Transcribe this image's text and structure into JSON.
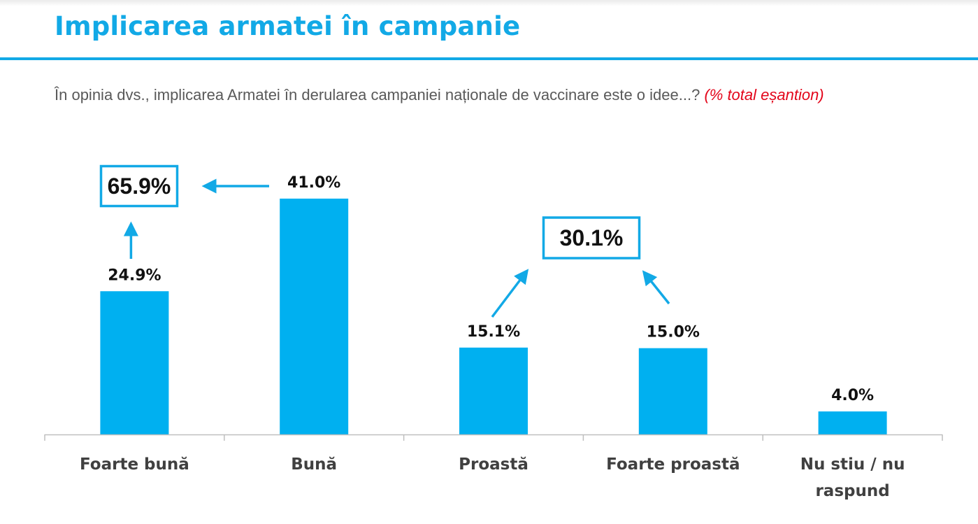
{
  "title": "Implicarea armatei în campanie",
  "question": {
    "text": "În opinia dvs., implicarea Armatei în derularea campaniei naționale de vaccinare este o idee...?",
    "note": "(% total eșantion)"
  },
  "colors": {
    "accent": "#12a9e6",
    "bar": "#00b0f0",
    "note": "#e3061b",
    "text": "#595959"
  },
  "chart_data": {
    "type": "bar",
    "categories": [
      "Foarte bună",
      "Bună",
      "Proastă",
      "Foarte proastă",
      "Nu stiu / nu raspund"
    ],
    "values": [
      24.9,
      41.0,
      15.1,
      15.0,
      4.0
    ],
    "value_labels": [
      "24.9%",
      "41.0%",
      "15.1%",
      "15.0%",
      "4.0%"
    ],
    "ylim": [
      0,
      45
    ],
    "grid": false,
    "totals": [
      {
        "label": "65.9%",
        "value": 65.9,
        "components": [
          "Foarte bună",
          "Bună"
        ]
      },
      {
        "label": "30.1%",
        "value": 30.1,
        "components": [
          "Proastă",
          "Foarte proastă"
        ]
      }
    ]
  }
}
